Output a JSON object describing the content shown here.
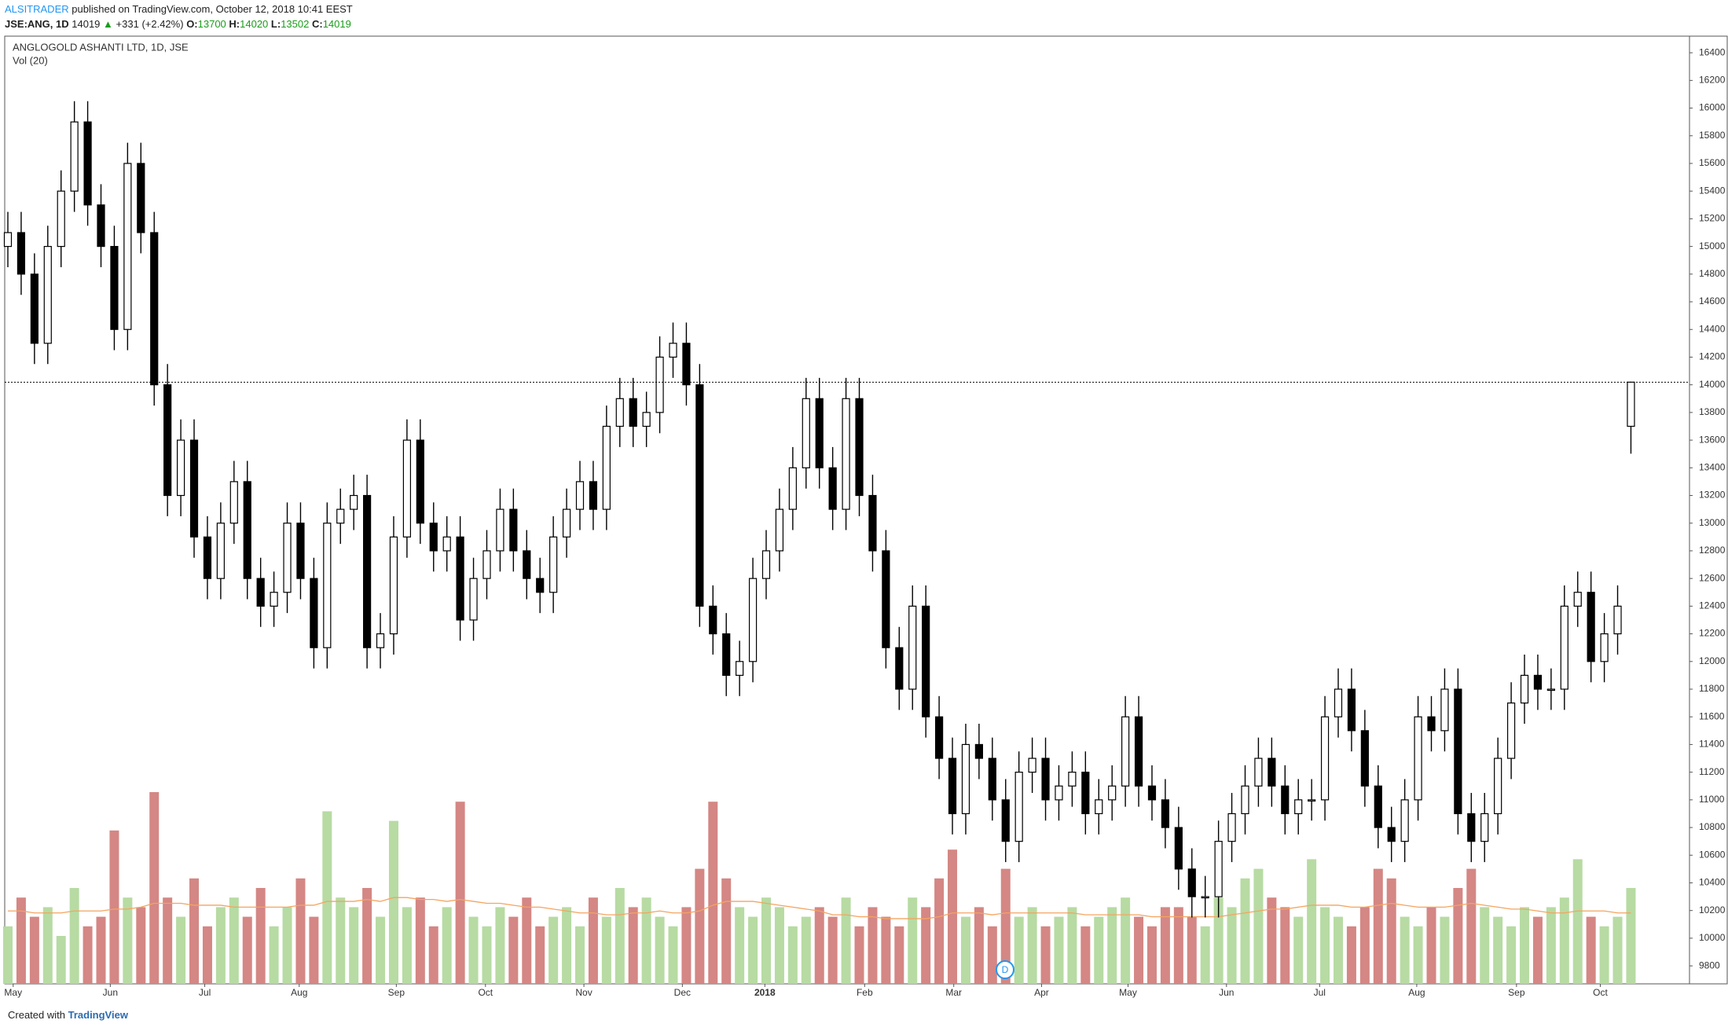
{
  "header": {
    "author": "ALSITRADER",
    "published": "published on TradingView.com, October 12, 2018 10:41 EEST",
    "symbol": "JSE:ANG, 1D",
    "last": "14019",
    "arrow": "▲",
    "change": "+331 (+2.42%)",
    "o_label": "O:",
    "o": "13700",
    "h_label": "H:",
    "h": "14020",
    "l_label": "L:",
    "l": "13502",
    "c_label": "C:",
    "c": "14019"
  },
  "footer": {
    "created": "Created with",
    "brand": "TradingView"
  },
  "chart_data": {
    "type": "candlestick",
    "title": "ANGLOGOLD ASHANTI LTD, 1D, JSE",
    "volume_label": "Vol (20)",
    "event_marker": "D",
    "up_color": "#ffffff",
    "down_color": "#000000",
    "volume_up_color": "#b7dba3",
    "volume_down_color": "#d48784",
    "ma_color": "#f4a460",
    "open": [
      15000,
      15100,
      14800,
      14300,
      15000,
      15400,
      15900,
      15300,
      15000,
      14400,
      15600,
      15100,
      14000,
      13200,
      13600,
      12900,
      12600,
      13000,
      13300,
      12600,
      12400,
      12500,
      13000,
      12600,
      12100,
      13000,
      13100,
      13200,
      12100,
      12200,
      12900,
      13600,
      13000,
      12800,
      12900,
      12300,
      12600,
      12800,
      13100,
      12800,
      12600,
      12500,
      12900,
      13100,
      13300,
      13100,
      13700,
      13900,
      13700,
      13800,
      14200,
      14300,
      14000,
      12400,
      12200,
      11900,
      12000,
      12600,
      12800,
      13100,
      13400,
      13900,
      13400,
      13100,
      13900,
      13200,
      12800,
      12100,
      11800,
      12400,
      11600,
      11300,
      10900,
      11400,
      11300,
      11000,
      10700,
      11200,
      11300,
      11000,
      11100,
      11200,
      10900,
      11000,
      11100,
      11600,
      11100,
      11000,
      10800,
      10500,
      10300,
      10300,
      10700,
      10900,
      11100,
      11300,
      11100,
      10900,
      11000,
      11000,
      11600,
      11800,
      11500,
      11100,
      10800,
      10700,
      11000,
      11600,
      11500,
      11800,
      10900,
      10700,
      10900,
      11300,
      11700,
      11900,
      11800,
      11800,
      12400,
      12500,
      12000,
      12200,
      13700
    ],
    "high": [
      15250,
      15250,
      14950,
      15150,
      15550,
      16050,
      16050,
      15450,
      15150,
      15750,
      15750,
      15250,
      14150,
      13750,
      13750,
      13050,
      13150,
      13450,
      13450,
      12750,
      12650,
      13150,
      13150,
      12750,
      13150,
      13250,
      13350,
      13350,
      12350,
      13050,
      13750,
      13750,
      13150,
      13050,
      13050,
      12750,
      12950,
      13250,
      13250,
      12950,
      12750,
      13050,
      13250,
      13450,
      13450,
      13850,
      14050,
      14050,
      13950,
      14350,
      14450,
      14450,
      14150,
      12550,
      12350,
      12150,
      12750,
      12950,
      13250,
      13550,
      14050,
      14050,
      13550,
      14050,
      14050,
      13350,
      12950,
      12250,
      12550,
      12550,
      11750,
      11450,
      11550,
      11550,
      11450,
      11150,
      11350,
      11450,
      11450,
      11250,
      11350,
      11350,
      11150,
      11250,
      11750,
      11750,
      11250,
      11150,
      10950,
      10650,
      10450,
      10850,
      11050,
      11250,
      11450,
      11450,
      11250,
      11150,
      11150,
      11750,
      11950,
      11950,
      11650,
      11250,
      10950,
      11150,
      11750,
      11750,
      11950,
      11950,
      11050,
      11050,
      11450,
      11850,
      12050,
      12050,
      11950,
      12550,
      12650,
      12650,
      12350,
      12550,
      14020
    ],
    "low": [
      14850,
      14650,
      14150,
      14150,
      14850,
      15250,
      15150,
      14850,
      14250,
      14250,
      14950,
      13850,
      13050,
      13050,
      12750,
      12450,
      12450,
      12850,
      12450,
      12250,
      12250,
      12350,
      12450,
      11950,
      11950,
      12850,
      12950,
      11950,
      11950,
      12050,
      12750,
      12850,
      12650,
      12650,
      12150,
      12150,
      12450,
      12650,
      12650,
      12450,
      12350,
      12350,
      12750,
      12950,
      12950,
      12950,
      13550,
      13550,
      13550,
      13650,
      14050,
      13850,
      12250,
      12050,
      11750,
      11750,
      11850,
      12450,
      12650,
      12950,
      13250,
      13250,
      12950,
      12950,
      13050,
      12650,
      11950,
      11650,
      11650,
      11450,
      11150,
      10750,
      10750,
      11150,
      10850,
      10550,
      10550,
      11050,
      10850,
      10850,
      10950,
      10750,
      10750,
      10850,
      10950,
      10950,
      10850,
      10650,
      10350,
      10150,
      10150,
      10150,
      10550,
      10750,
      10950,
      10950,
      10750,
      10750,
      10850,
      10850,
      11450,
      11350,
      10950,
      10650,
      10550,
      10550,
      10850,
      11350,
      11350,
      10750,
      10550,
      10550,
      10750,
      11150,
      11550,
      11650,
      11650,
      11650,
      12250,
      11850,
      11850,
      12050,
      13502
    ],
    "close": [
      15100,
      14800,
      14300,
      15000,
      15400,
      15900,
      15300,
      15000,
      14400,
      15600,
      15100,
      14000,
      13200,
      13600,
      12900,
      12600,
      13000,
      13300,
      12600,
      12400,
      12500,
      13000,
      12600,
      12100,
      13000,
      13100,
      13200,
      12100,
      12200,
      12900,
      13600,
      13000,
      12800,
      12900,
      12300,
      12600,
      12800,
      13100,
      12800,
      12600,
      12500,
      12900,
      13100,
      13300,
      13100,
      13700,
      13900,
      13700,
      13800,
      14200,
      14300,
      14000,
      12400,
      12200,
      11900,
      12000,
      12600,
      12800,
      13100,
      13400,
      13900,
      13400,
      13100,
      13900,
      13200,
      12800,
      12100,
      11800,
      12400,
      11600,
      11300,
      10900,
      11400,
      11300,
      11000,
      10700,
      11200,
      11300,
      11000,
      11100,
      11200,
      10900,
      11000,
      11100,
      11600,
      11100,
      11000,
      10800,
      10500,
      10300,
      10300,
      10700,
      10900,
      11100,
      11300,
      11100,
      10900,
      11000,
      11000,
      11600,
      11800,
      11500,
      11100,
      10800,
      10700,
      11000,
      11600,
      11500,
      11800,
      10900,
      10700,
      10900,
      11300,
      11700,
      11900,
      11800,
      11800,
      12400,
      12500,
      12000,
      12200,
      12400,
      14019
    ],
    "volume": [
      30,
      45,
      35,
      40,
      25,
      50,
      30,
      35,
      80,
      45,
      40,
      100,
      45,
      35,
      55,
      30,
      40,
      45,
      35,
      50,
      30,
      40,
      55,
      35,
      90,
      45,
      40,
      50,
      35,
      85,
      40,
      45,
      30,
      40,
      95,
      35,
      30,
      40,
      35,
      45,
      30,
      35,
      40,
      30,
      45,
      35,
      50,
      40,
      45,
      35,
      30,
      40,
      60,
      95,
      55,
      40,
      35,
      45,
      40,
      30,
      35,
      40,
      35,
      45,
      30,
      40,
      35,
      30,
      45,
      40,
      55,
      70,
      35,
      40,
      30,
      60,
      35,
      40,
      30,
      35,
      40,
      30,
      35,
      40,
      45,
      35,
      30,
      40,
      40,
      35,
      30,
      45,
      40,
      55,
      60,
      45,
      40,
      35,
      65,
      40,
      35,
      30,
      40,
      60,
      55,
      35,
      30,
      40,
      35,
      50,
      60,
      40,
      35,
      30,
      40,
      35,
      40,
      45,
      65,
      35,
      30,
      35,
      50
    ],
    "volume_ma": [
      38,
      38,
      37,
      37,
      37,
      38,
      38,
      38,
      39,
      39,
      40,
      42,
      42,
      42,
      41,
      41,
      41,
      40,
      40,
      40,
      40,
      40,
      41,
      41,
      43,
      43,
      43,
      44,
      43,
      45,
      45,
      44,
      44,
      43,
      44,
      43,
      42,
      42,
      41,
      40,
      40,
      39,
      38,
      37,
      37,
      36,
      36,
      37,
      37,
      38,
      37,
      37,
      38,
      41,
      43,
      43,
      43,
      42,
      41,
      40,
      39,
      38,
      36,
      36,
      35,
      35,
      34,
      34,
      34,
      34,
      35,
      37,
      37,
      37,
      36,
      37,
      37,
      37,
      37,
      37,
      37,
      36,
      36,
      36,
      36,
      36,
      35,
      35,
      35,
      35,
      35,
      35,
      36,
      37,
      38,
      39,
      39,
      40,
      41,
      41,
      41,
      40,
      40,
      41,
      42,
      41,
      40,
      40,
      40,
      41,
      42,
      41,
      40,
      39,
      39,
      38,
      37,
      37,
      38,
      38,
      38,
      37,
      37
    ],
    "volume_lim": [
      0,
      100
    ],
    "ylim": [
      9670,
      16520
    ],
    "yticks": [
      9800,
      10000,
      10200,
      10400,
      10600,
      10800,
      11000,
      11200,
      11400,
      11600,
      11800,
      12000,
      12200,
      12400,
      12600,
      12800,
      13000,
      13200,
      13400,
      13600,
      13800,
      14000,
      14200,
      14400,
      14600,
      14800,
      15000,
      15200,
      15400,
      15600,
      15800,
      16000,
      16200,
      16400
    ],
    "xticks": [
      {
        "value": 0.4,
        "label": "May"
      },
      {
        "value": 7.7,
        "label": "Jun"
      },
      {
        "value": 14.8,
        "label": "Jul"
      },
      {
        "value": 21.9,
        "label": "Aug"
      },
      {
        "value": 29.2,
        "label": "Sep"
      },
      {
        "value": 35.9,
        "label": "Oct"
      },
      {
        "value": 43.3,
        "label": "Nov"
      },
      {
        "value": 50.7,
        "label": "Dec"
      },
      {
        "value": 56.9,
        "label": "2018"
      },
      {
        "value": 64.4,
        "label": "Feb"
      },
      {
        "value": 71.1,
        "label": "Mar"
      },
      {
        "value": 77.7,
        "label": "Apr"
      },
      {
        "value": 84.2,
        "label": "May"
      },
      {
        "value": 91.6,
        "label": "Jun"
      },
      {
        "value": 98.6,
        "label": "Jul"
      },
      {
        "value": 105.9,
        "label": "Aug"
      },
      {
        "value": 113.4,
        "label": "Sep"
      },
      {
        "value": 119.7,
        "label": "Oct"
      }
    ]
  }
}
